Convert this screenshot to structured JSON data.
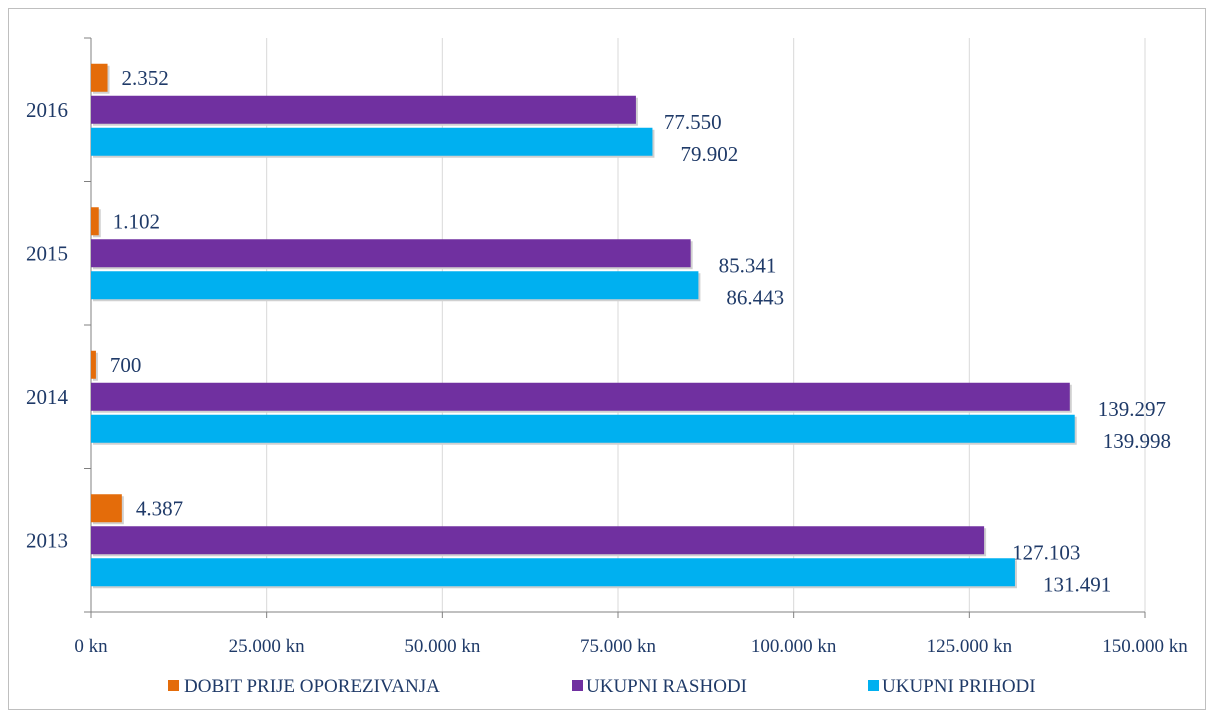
{
  "chart_data": {
    "type": "bar",
    "orientation": "horizontal",
    "categories": [
      "2013",
      "2014",
      "2015",
      "2016"
    ],
    "series": [
      {
        "name": "DOBIT PRIJE OPOREZIVANJA",
        "color": "#e46c0a",
        "values": [
          4387,
          700,
          1102,
          2352
        ],
        "labels": [
          "4.387",
          "700",
          "1.102",
          "2.352"
        ]
      },
      {
        "name": "UKUPNI RASHODI",
        "color": "#7030a0",
        "values": [
          127103,
          139297,
          85341,
          77550
        ],
        "labels": [
          "127.103",
          "139.297",
          "85.341",
          "77.550"
        ]
      },
      {
        "name": "UKUPNI PRIHODI",
        "color": "#00b0f0",
        "values": [
          131491,
          139998,
          86443,
          79902
        ],
        "labels": [
          "131.491",
          "139.998",
          "86.443",
          "79.902"
        ]
      }
    ],
    "x_ticks": [
      0,
      25000,
      50000,
      75000,
      100000,
      125000,
      150000
    ],
    "x_tick_labels": [
      "0 kn",
      "25.000 kn",
      "50.000 kn",
      "75.000 kn",
      "100.000 kn",
      "125.000 kn",
      "150.000 kn"
    ],
    "xlim": [
      0,
      150000
    ],
    "grid": true,
    "legend_position": "bottom"
  }
}
